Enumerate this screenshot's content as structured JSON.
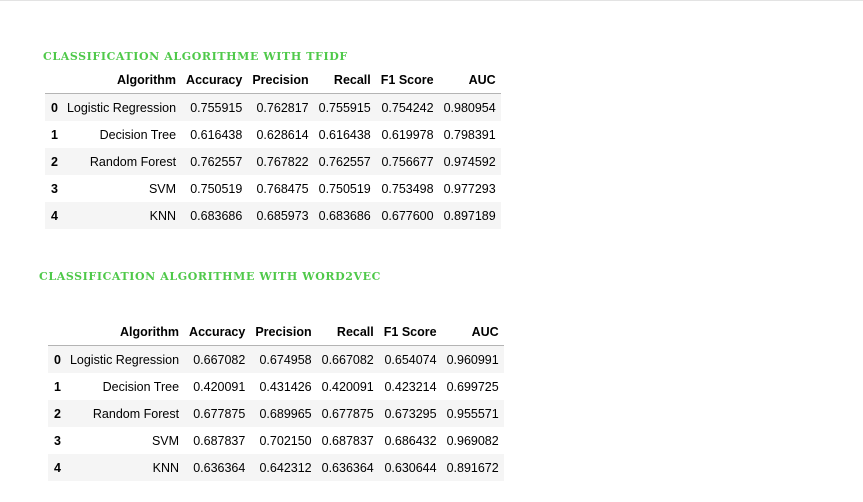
{
  "sections": [
    {
      "title": "CLASSIFICATION ALGORITHME WITH TFIDF",
      "columns": [
        "Algorithm",
        "Accuracy",
        "Precision",
        "Recall",
        "F1 Score",
        "AUC"
      ],
      "rows": [
        {
          "index": "0",
          "cells": [
            "Logistic Regression",
            "0.755915",
            "0.762817",
            "0.755915",
            "0.754242",
            "0.980954"
          ]
        },
        {
          "index": "1",
          "cells": [
            "Decision Tree",
            "0.616438",
            "0.628614",
            "0.616438",
            "0.619978",
            "0.798391"
          ]
        },
        {
          "index": "2",
          "cells": [
            "Random Forest",
            "0.762557",
            "0.767822",
            "0.762557",
            "0.756677",
            "0.974592"
          ]
        },
        {
          "index": "3",
          "cells": [
            "SVM",
            "0.750519",
            "0.768475",
            "0.750519",
            "0.753498",
            "0.977293"
          ]
        },
        {
          "index": "4",
          "cells": [
            "KNN",
            "0.683686",
            "0.685973",
            "0.683686",
            "0.677600",
            "0.897189"
          ]
        }
      ]
    },
    {
      "title": "CLASSIFICATION ALGORITHME WITH WORD2VEC",
      "columns": [
        "Algorithm",
        "Accuracy",
        "Precision",
        "Recall",
        "F1 Score",
        "AUC"
      ],
      "rows": [
        {
          "index": "0",
          "cells": [
            "Logistic Regression",
            "0.667082",
            "0.674958",
            "0.667082",
            "0.654074",
            "0.960991"
          ]
        },
        {
          "index": "1",
          "cells": [
            "Decision Tree",
            "0.420091",
            "0.431426",
            "0.420091",
            "0.423214",
            "0.699725"
          ]
        },
        {
          "index": "2",
          "cells": [
            "Random Forest",
            "0.677875",
            "0.689965",
            "0.677875",
            "0.673295",
            "0.955571"
          ]
        },
        {
          "index": "3",
          "cells": [
            "SVM",
            "0.687837",
            "0.702150",
            "0.687837",
            "0.686432",
            "0.969082"
          ]
        },
        {
          "index": "4",
          "cells": [
            "KNN",
            "0.636364",
            "0.642312",
            "0.636364",
            "0.630644",
            "0.891672"
          ]
        }
      ]
    }
  ],
  "colors": {
    "title": "#4fc94a",
    "row_stripe": "#f5f5f5",
    "header_rule": "#b4b4b4"
  }
}
